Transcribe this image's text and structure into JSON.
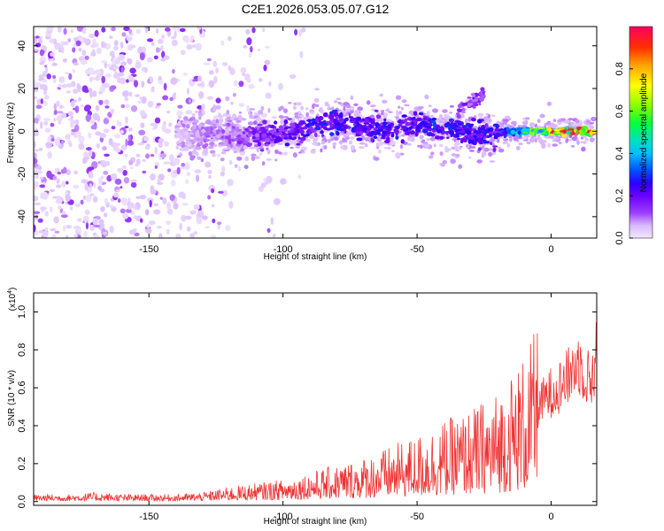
{
  "title": "C2E1.2026.053.05.07.G12",
  "colors": {
    "line": "#ee3333",
    "axis": "#000000",
    "background": "#ffffff",
    "colormap": [
      "#f2e8ff",
      "#d9b8ff",
      "#9b3dff",
      "#6a00ff",
      "#2b00ff",
      "#0050ff",
      "#00c0ff",
      "#00e0c0",
      "#00ff40",
      "#80ff00",
      "#ffff00",
      "#ffa000",
      "#ff3000",
      "#ff0060"
    ]
  },
  "chart_data": [
    {
      "type": "heatmap",
      "name": "spectrogram",
      "xlabel": "Height of straight line (km)",
      "ylabel": "Frequency (Hz)",
      "xlim": [
        -193,
        17
      ],
      "ylim": [
        -50,
        49
      ],
      "x_ticks": [
        -150,
        -100,
        -50,
        0
      ],
      "y_ticks": [
        -40,
        -20,
        0,
        20,
        40
      ],
      "colorbar": {
        "label": "Normalized spectral amplitude",
        "range": [
          0.0,
          1.0
        ],
        "ticks": [
          0.0,
          0.2,
          0.4,
          0.6,
          0.8
        ]
      },
      "ridge": {
        "x": [
          -140,
          -130,
          -120,
          -110,
          -100,
          -90,
          -80,
          -70,
          -60,
          -50,
          -40,
          -30,
          -20,
          -10,
          0,
          10,
          15
        ],
        "freq": [
          -3,
          -2,
          -1,
          -2,
          -1,
          2,
          4,
          2,
          1,
          3,
          1,
          -1,
          -1,
          0,
          0,
          0,
          0
        ],
        "amplitude": [
          0.05,
          0.12,
          0.15,
          0.2,
          0.25,
          0.3,
          0.32,
          0.28,
          0.3,
          0.3,
          0.35,
          0.3,
          0.3,
          0.6,
          0.85,
          0.95,
          0.95
        ]
      }
    },
    {
      "type": "line",
      "name": "snr",
      "xlabel": "Height of straight line (km)",
      "ylabel": "SNR (10 * v/v)",
      "scale_note": "(x10",
      "scale_exp": "4",
      "scale_close": ")",
      "xlim": [
        -193,
        17
      ],
      "ylim": [
        -0.02,
        1.1
      ],
      "x_ticks": [
        -150,
        -100,
        -50,
        0
      ],
      "y_ticks": [
        0.0,
        0.2,
        0.4,
        0.6,
        0.8,
        1.0
      ],
      "x": [
        -193,
        -180,
        -170,
        -160,
        -150,
        -140,
        -130,
        -120,
        -110,
        -100,
        -90,
        -80,
        -70,
        -60,
        -50,
        -40,
        -30,
        -20,
        -10,
        0,
        5,
        10,
        15,
        17
      ],
      "y": [
        0.02,
        0.02,
        0.025,
        0.02,
        0.02,
        0.02,
        0.025,
        0.04,
        0.05,
        0.06,
        0.08,
        0.1,
        0.12,
        0.15,
        0.18,
        0.22,
        0.25,
        0.3,
        0.4,
        0.55,
        0.6,
        0.7,
        0.6,
        0.75
      ]
    }
  ]
}
